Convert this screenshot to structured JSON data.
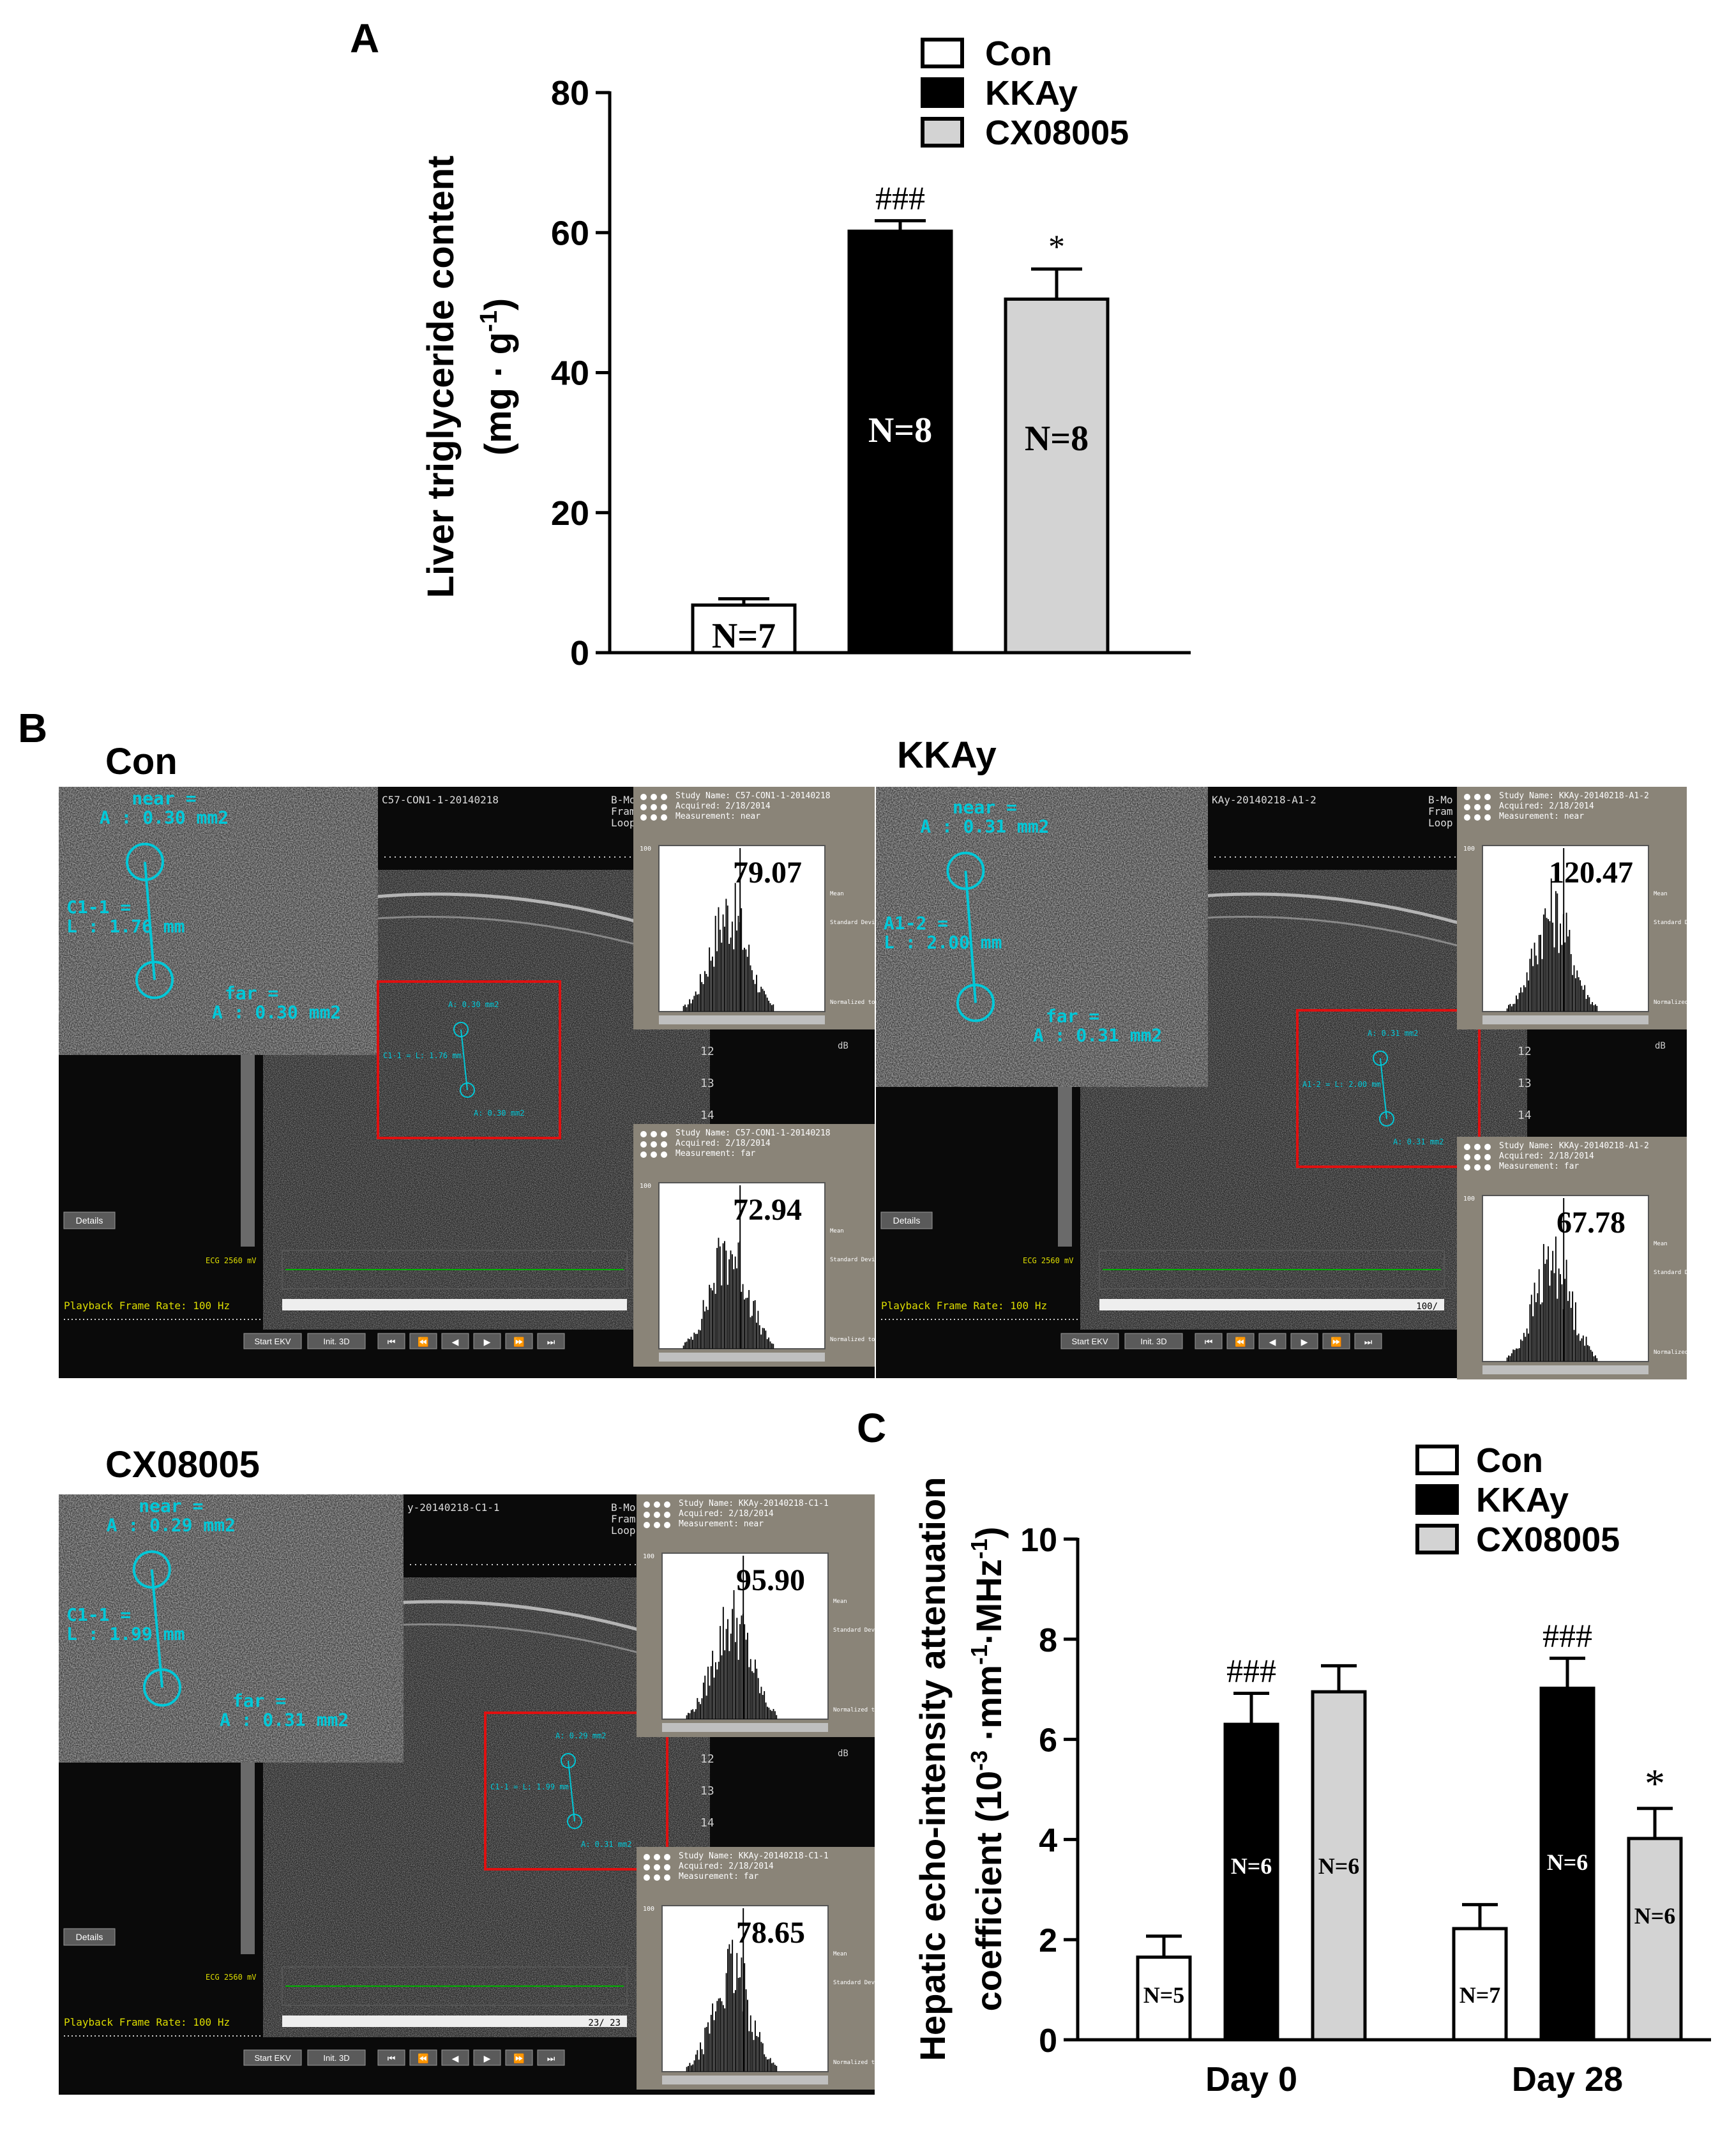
{
  "panel_a": {
    "label": "A",
    "chart_data": {
      "type": "bar",
      "ylabel": "Liver triglyceride content",
      "ylabel_units": "(mg · g",
      "ylabel_exp": "-1",
      "ylabel_close": ")",
      "ylim": [
        0,
        80
      ],
      "yticks": [
        "0",
        "20",
        "40",
        "60",
        "80"
      ],
      "legend": [
        "Con",
        "KKAy",
        "CX08005"
      ],
      "colors": [
        "#ffffff",
        "#000000",
        "#d3d3d3"
      ],
      "bars": [
        {
          "group": "Con",
          "value": 6.8,
          "err": 0.9,
          "n": "N=7",
          "sig": ""
        },
        {
          "group": "KKAy",
          "value": 60.2,
          "err": 1.5,
          "n": "N=8",
          "sig": "###"
        },
        {
          "group": "CX08005",
          "value": 50.5,
          "err": 4.3,
          "n": "N=8",
          "sig": "*"
        }
      ]
    }
  },
  "panel_b": {
    "label": "B",
    "images": [
      {
        "group": "Con",
        "filename": "C57-CON1-1-20140218",
        "near_area": "A : 0.30 mm2",
        "far_area": "A : 0.30 mm2",
        "dist_label": "C1-1 =",
        "dist_value": "L : 1.76 mm",
        "small_near": "A: 0.30 mm2",
        "small_dist": "C1-1 = L: 1.76 mm",
        "small_far": "A: 0.30 mm2",
        "study_near": "C57-CON1-1-20140218",
        "study_far": "C57-CON1-1-20140218",
        "mean_near": "79.07",
        "mean_far": "72.94",
        "frame_counter": ""
      },
      {
        "group": "KKAy",
        "filename": "KAy-20140218-A1-2",
        "near_area": "A : 0.31 mm2",
        "far_area": "A : 0.31 mm2",
        "dist_label": "A1-2 =",
        "dist_value": "L : 2.00 mm",
        "small_near": "A: 0.31 mm2",
        "small_dist": "A1-2 = L: 2.00 mm",
        "small_far": "A: 0.31 mm2",
        "study_near": "KKAy-20140218-A1-2",
        "study_far": "KKAy-20140218-A1-2",
        "mean_near": "120.47",
        "mean_far": "67.78",
        "frame_counter": "100/"
      },
      {
        "group": "CX08005",
        "filename": "y-20140218-C1-1",
        "near_area": "A : 0.29 mm2",
        "far_area": "A : 0.31 mm2",
        "dist_label": "C1-1 =",
        "dist_value": "L : 1.99 mm",
        "small_near": "A: 0.29 mm2",
        "small_dist": "C1-1 = L: 1.99 mm",
        "small_far": "A: 0.31 mm2",
        "study_near": "KKAy-20140218-C1-1",
        "study_far": "KKAy-20140218-C1-1",
        "mean_near": "95.90",
        "mean_far": "78.65",
        "frame_counter": "23/ 23"
      }
    ],
    "ui": {
      "near": "near =",
      "far": "far =",
      "study_name": "Study Name:",
      "acquired": "Acquired:",
      "acquired_date": "2/18/2014",
      "measurement": "Measurement:",
      "meas_near": "near",
      "meas_far": "far",
      "mode": "B-Mo",
      "fram": "Fram",
      "loop": "Loop",
      "details": "Details",
      "ecg": "ECG  2560 mV",
      "playback": "Playback Frame Rate: 100 Hz",
      "start_ekv": "Start EKV",
      "init_3d": "Init. 3D",
      "mean": "Mean",
      "std": "Standard Deviation",
      "normalized": "Normalized to maximum value",
      "db": "dB",
      "depth_12": "12",
      "depth_13": "13",
      "depth_14": "14",
      "hist_max": "100"
    }
  },
  "panel_c": {
    "label": "C",
    "chart_data": {
      "type": "bar",
      "ylabel": "Hepatic echo-intensity attenuation",
      "ylabel2": "coefficient  (10",
      "ylabel2_e1": "-3",
      "ylabel2_mid": " ·mm",
      "ylabel2_e2": "-1",
      "ylabel2_mid2": "·MHz",
      "ylabel2_e3": "-1",
      "ylabel2_close": ")",
      "ylim": [
        0,
        10
      ],
      "yticks": [
        "0",
        "2",
        "4",
        "6",
        "8",
        "10"
      ],
      "categories": [
        "Day 0",
        "Day 28"
      ],
      "legend": [
        "Con",
        "KKAy",
        "CX08005"
      ],
      "colors": [
        "#ffffff",
        "#000000",
        "#d3d3d3"
      ],
      "series": [
        {
          "name": "Con",
          "values": [
            1.65,
            2.22
          ],
          "err": [
            0.42,
            0.48
          ],
          "n": [
            "N=5",
            "N=7"
          ],
          "sig": [
            "",
            ""
          ]
        },
        {
          "name": "KKAy",
          "values": [
            6.3,
            7.02
          ],
          "err": [
            0.62,
            0.6
          ],
          "n": [
            "N=6",
            "N=6"
          ],
          "sig": [
            "###",
            "###"
          ]
        },
        {
          "name": "CX08005",
          "values": [
            6.95,
            4.02
          ],
          "err": [
            0.52,
            0.6
          ],
          "n": [
            "N=6",
            "N=6"
          ],
          "sig": [
            "",
            "*"
          ]
        }
      ]
    }
  },
  "labels": {
    "con": "Con",
    "kkay": "KKAy",
    "cx": "CX08005"
  }
}
